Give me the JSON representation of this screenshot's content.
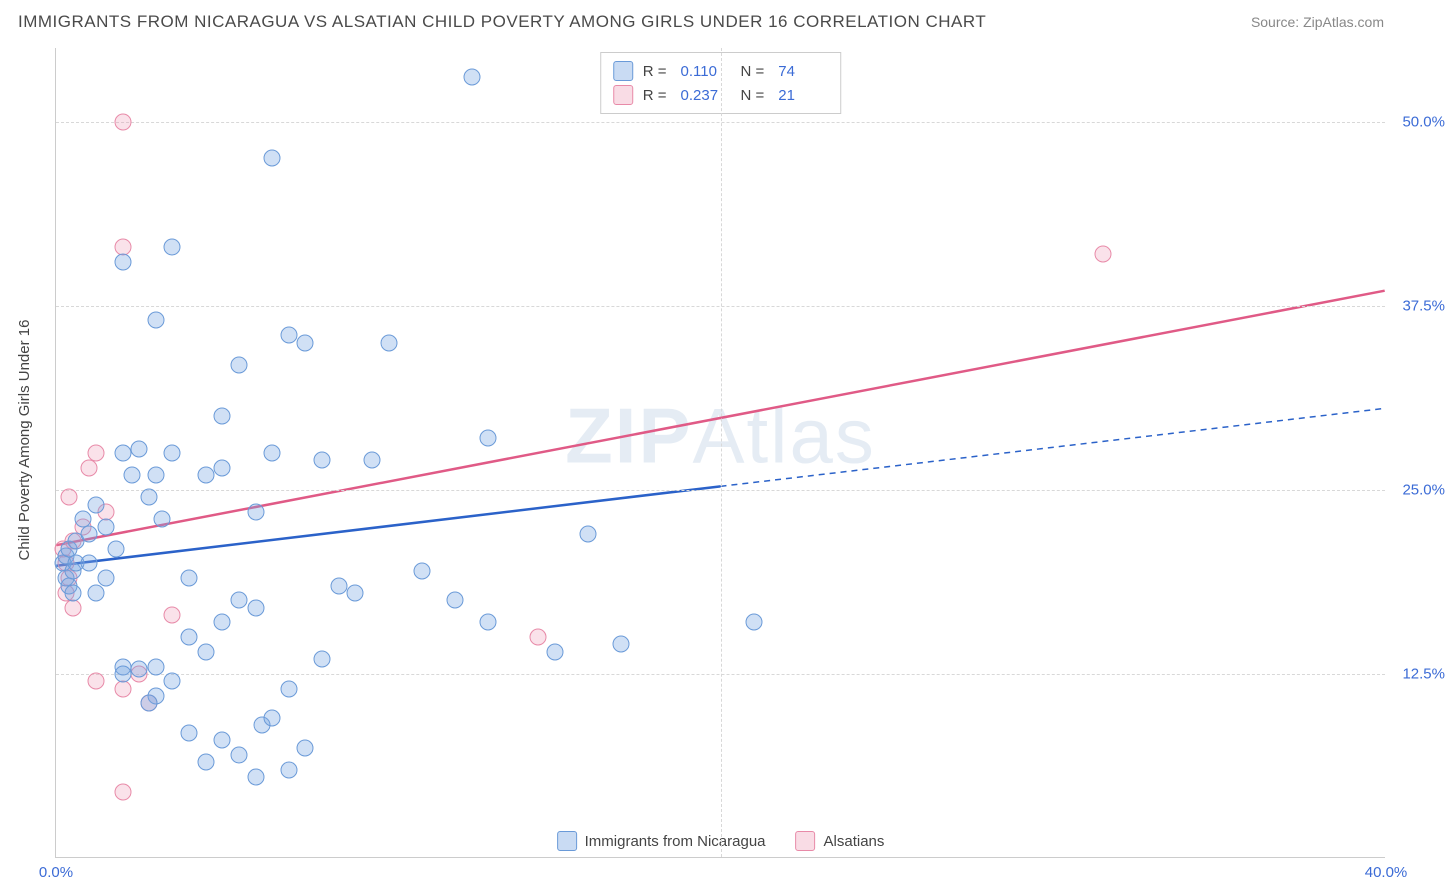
{
  "title": "IMMIGRANTS FROM NICARAGUA VS ALSATIAN CHILD POVERTY AMONG GIRLS UNDER 16 CORRELATION CHART",
  "source": "Source: ZipAtlas.com",
  "yaxis_label": "Child Poverty Among Girls Under 16",
  "watermark_bold": "ZIP",
  "watermark_light": "Atlas",
  "chart": {
    "type": "scatter",
    "xlim": [
      0,
      40
    ],
    "ylim": [
      0,
      55
    ],
    "xticks": [
      0,
      40
    ],
    "xtick_labels": [
      "0.0%",
      "40.0%"
    ],
    "yticks": [
      12.5,
      25,
      37.5,
      50
    ],
    "ytick_labels": [
      "12.5%",
      "25.0%",
      "37.5%",
      "50.0%"
    ],
    "xgridlines": [
      20
    ],
    "background_color": "#ffffff",
    "grid_color": "#d8d8d8",
    "marker_size": 17,
    "series": {
      "blue": {
        "label": "Immigrants from Nicaragua",
        "fill": "rgba(120,165,225,0.35)",
        "stroke": "#6a9ad8",
        "R": "0.110",
        "N": "74",
        "trend": {
          "x1": 0,
          "y1": 19.8,
          "x2_solid": 20,
          "y2_solid": 25.2,
          "x2_dash": 40,
          "y2_dash": 30.5,
          "color": "#2b62c9",
          "width": 2.5
        },
        "points": [
          [
            0.2,
            20.0
          ],
          [
            0.3,
            19.0
          ],
          [
            0.3,
            20.5
          ],
          [
            0.4,
            18.5
          ],
          [
            0.4,
            21.0
          ],
          [
            0.5,
            19.5
          ],
          [
            0.5,
            18.0
          ],
          [
            0.6,
            20.0
          ],
          [
            0.6,
            21.5
          ],
          [
            0.8,
            23.0
          ],
          [
            1.0,
            22.0
          ],
          [
            1.2,
            24.0
          ],
          [
            1.0,
            20.0
          ],
          [
            1.2,
            18.0
          ],
          [
            1.5,
            19.0
          ],
          [
            1.5,
            22.5
          ],
          [
            1.8,
            21.0
          ],
          [
            2.0,
            27.5
          ],
          [
            2.3,
            26.0
          ],
          [
            2.5,
            27.8
          ],
          [
            2.8,
            24.5
          ],
          [
            3.0,
            26.0
          ],
          [
            3.2,
            23.0
          ],
          [
            3.5,
            27.5
          ],
          [
            4.0,
            19.0
          ],
          [
            2.0,
            13.0
          ],
          [
            2.0,
            12.5
          ],
          [
            2.5,
            12.8
          ],
          [
            3.0,
            13.0
          ],
          [
            3.0,
            11.0
          ],
          [
            3.5,
            12.0
          ],
          [
            2.8,
            10.5
          ],
          [
            4.0,
            15.0
          ],
          [
            4.5,
            14.0
          ],
          [
            5.0,
            16.0
          ],
          [
            5.5,
            17.5
          ],
          [
            6.0,
            17.0
          ],
          [
            6.2,
            9.0
          ],
          [
            6.5,
            9.5
          ],
          [
            7.0,
            11.5
          ],
          [
            7.5,
            7.5
          ],
          [
            4.0,
            8.5
          ],
          [
            4.5,
            6.5
          ],
          [
            5.0,
            8.0
          ],
          [
            5.5,
            7.0
          ],
          [
            6.0,
            5.5
          ],
          [
            7.0,
            6.0
          ],
          [
            8.0,
            13.5
          ],
          [
            2.0,
            40.5
          ],
          [
            3.0,
            36.5
          ],
          [
            3.5,
            41.5
          ],
          [
            5.0,
            30.0
          ],
          [
            5.5,
            33.5
          ],
          [
            6.5,
            47.5
          ],
          [
            7.0,
            35.5
          ],
          [
            7.5,
            35.0
          ],
          [
            8.5,
            18.5
          ],
          [
            9.0,
            18.0
          ],
          [
            10.0,
            35.0
          ],
          [
            4.5,
            26.0
          ],
          [
            5.0,
            26.5
          ],
          [
            6.0,
            23.5
          ],
          [
            6.5,
            27.5
          ],
          [
            8.0,
            27.0
          ],
          [
            9.5,
            27.0
          ],
          [
            11.0,
            19.5
          ],
          [
            12.5,
            53.0
          ],
          [
            12.0,
            17.5
          ],
          [
            13.0,
            16.0
          ],
          [
            15.0,
            14.0
          ],
          [
            16.0,
            22.0
          ],
          [
            17.0,
            14.5
          ],
          [
            21.0,
            16.0
          ],
          [
            13.0,
            28.5
          ]
        ]
      },
      "pink": {
        "label": "Alsatians",
        "fill": "rgba(235,140,170,0.25)",
        "stroke": "#e88aa8",
        "R": "0.237",
        "N": "21",
        "trend": {
          "x1": 0,
          "y1": 21.2,
          "x2_solid": 40,
          "y2_solid": 38.5,
          "color": "#e05a86",
          "width": 2.5
        },
        "points": [
          [
            0.2,
            21.0
          ],
          [
            0.3,
            20.0
          ],
          [
            0.4,
            19.0
          ],
          [
            0.3,
            18.0
          ],
          [
            0.5,
            21.5
          ],
          [
            0.5,
            17.0
          ],
          [
            0.8,
            22.5
          ],
          [
            0.4,
            24.5
          ],
          [
            1.0,
            26.5
          ],
          [
            1.2,
            27.5
          ],
          [
            1.5,
            23.5
          ],
          [
            2.0,
            50.0
          ],
          [
            2.0,
            41.5
          ],
          [
            1.2,
            12.0
          ],
          [
            2.0,
            11.5
          ],
          [
            2.5,
            12.5
          ],
          [
            2.8,
            10.5
          ],
          [
            3.5,
            16.5
          ],
          [
            2.0,
            4.5
          ],
          [
            14.5,
            15.0
          ],
          [
            31.5,
            41.0
          ]
        ]
      }
    }
  },
  "legend_top": [
    {
      "swatch": "blue",
      "r_label": "R =",
      "r_val": "0.110",
      "n_label": "N =",
      "n_val": "74"
    },
    {
      "swatch": "pink",
      "r_label": "R =",
      "r_val": "0.237",
      "n_label": "N =",
      "n_val": "21"
    }
  ],
  "legend_bottom": [
    {
      "swatch": "blue",
      "label": "Immigrants from Nicaragua"
    },
    {
      "swatch": "pink",
      "label": "Alsatians"
    }
  ]
}
